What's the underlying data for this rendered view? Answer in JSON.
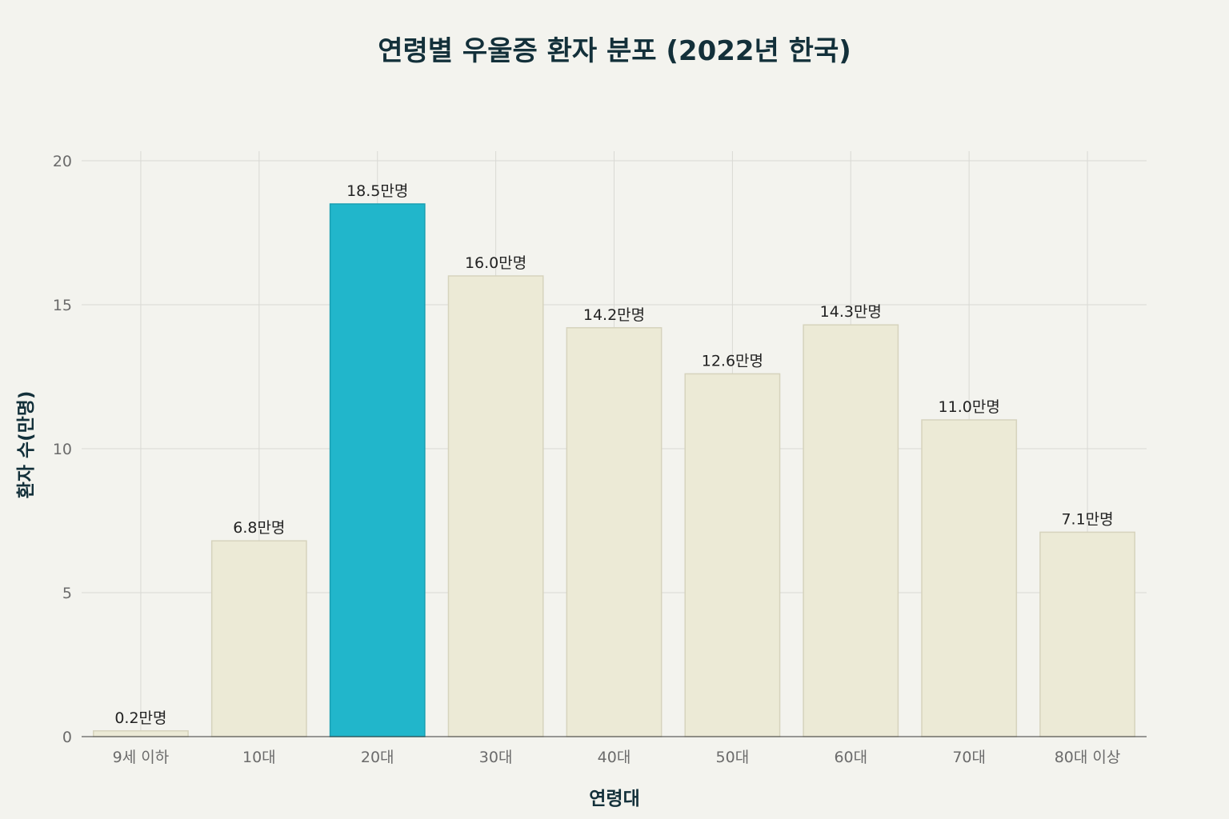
{
  "chart_data": {
    "type": "bar",
    "title": "연령별 우울증 환자 분포 (2022년 한국)",
    "xlabel": "연령대",
    "ylabel": "환자 수(만명)",
    "categories": [
      "9세 이하",
      "10대",
      "20대",
      "30대",
      "40대",
      "50대",
      "60대",
      "70대",
      "80대 이상"
    ],
    "values": [
      0.2,
      6.8,
      18.5,
      16.0,
      14.2,
      12.6,
      14.3,
      11.0,
      7.1
    ],
    "data_labels": [
      "0.2만명",
      "6.8만명",
      "18.5만명",
      "16.0만명",
      "14.2만명",
      "12.6만명",
      "14.3만명",
      "11.0만명",
      "7.1만명"
    ],
    "ylim": [
      0,
      20
    ],
    "yticks": [
      0,
      5,
      10,
      15,
      20
    ],
    "grid": true,
    "highlight_index": 2,
    "colors": {
      "bar": "#ecead6",
      "bar_border": "#d6d3bd",
      "highlight": "#21b6cb",
      "highlight_border": "#1a9fb2",
      "background": "#f3f3ee"
    }
  }
}
